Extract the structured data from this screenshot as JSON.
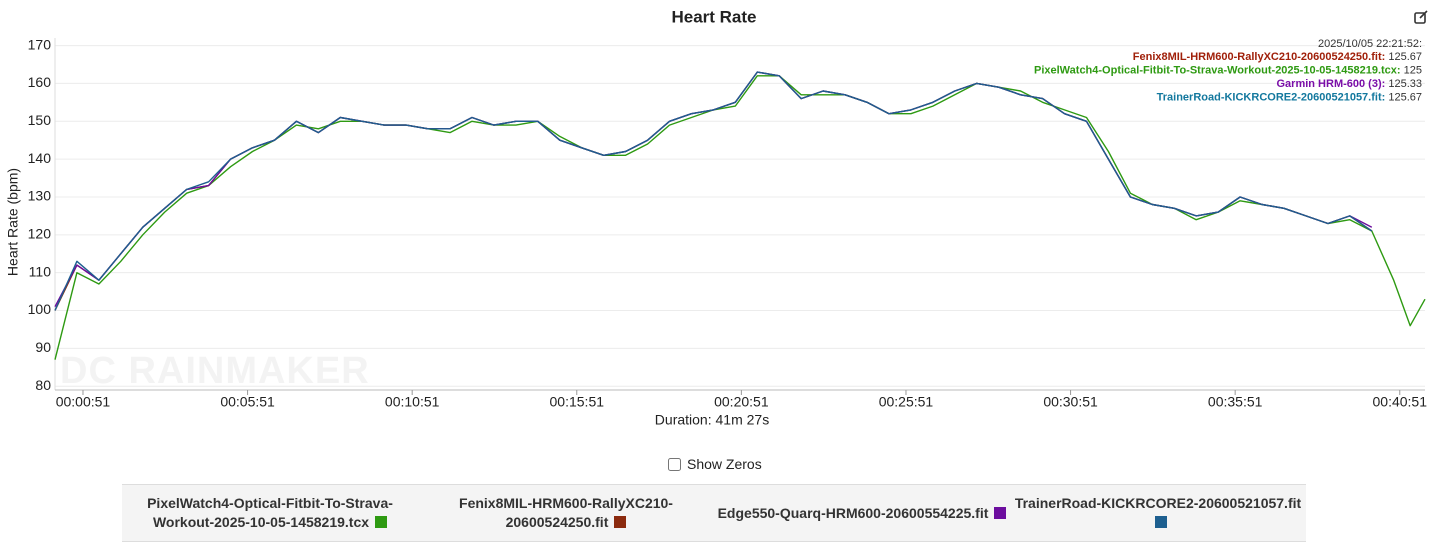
{
  "chart_data": {
    "type": "line",
    "title": "Heart Rate",
    "y_label": "Heart Rate (bpm)",
    "x_label": "Duration: 41m 27s",
    "watermark": "DC RAINMAKER",
    "show_zeros_label": "Show Zeros",
    "grid": true,
    "xlim": [
      0,
      2497
    ],
    "xticks": [
      {
        "value": 51,
        "label": "00:00:51"
      },
      {
        "value": 351,
        "label": "00:05:51"
      },
      {
        "value": 651,
        "label": "00:10:51"
      },
      {
        "value": 951,
        "label": "00:15:51"
      },
      {
        "value": 1251,
        "label": "00:20:51"
      },
      {
        "value": 1551,
        "label": "00:25:51"
      },
      {
        "value": 1851,
        "label": "00:30:51"
      },
      {
        "value": 2151,
        "label": "00:35:51"
      },
      {
        "value": 2451,
        "label": "00:40:51"
      }
    ],
    "ylim": [
      79,
      172
    ],
    "yticks": [
      80,
      90,
      100,
      110,
      120,
      130,
      140,
      150,
      160,
      170
    ],
    "x": [
      0,
      40,
      80,
      120,
      160,
      200,
      240,
      280,
      320,
      360,
      400,
      440,
      480,
      520,
      560,
      600,
      640,
      680,
      720,
      760,
      800,
      840,
      880,
      920,
      960,
      1000,
      1040,
      1080,
      1120,
      1160,
      1200,
      1240,
      1280,
      1320,
      1360,
      1400,
      1440,
      1480,
      1520,
      1560,
      1600,
      1640,
      1680,
      1720,
      1760,
      1800,
      1840,
      1880,
      1920,
      1960,
      2000,
      2040,
      2080,
      2120,
      2160,
      2200,
      2240,
      2280,
      2320,
      2360,
      2400,
      2440,
      2470,
      2497
    ],
    "series": [
      {
        "name": "PixelWatch4-Optical-Fitbit-To-Strava-Workout-2025-10-05-1458219.tcx",
        "color": "#2e9a12",
        "values": [
          87,
          110,
          107,
          113,
          120,
          126,
          131,
          133,
          138,
          142,
          145,
          149,
          148,
          150,
          150,
          149,
          149,
          148,
          147,
          150,
          149,
          149,
          150,
          146,
          143,
          141,
          141,
          144,
          149,
          151,
          153,
          154,
          162,
          162,
          157,
          157,
          157,
          155,
          152,
          152,
          154,
          157,
          160,
          159,
          158,
          155,
          153,
          151,
          142,
          131,
          128,
          127,
          124,
          126,
          129,
          128,
          127,
          125,
          123,
          124,
          121,
          108,
          96,
          103
        ]
      },
      {
        "name": "Fenix8MIL-HRM600-RallyXC210-20600524250.fit",
        "color": "#8b2a0e",
        "values": [
          100,
          112,
          108,
          115,
          122,
          127,
          132,
          133,
          140,
          143,
          145,
          150,
          147,
          151,
          150,
          149,
          149,
          148,
          148,
          151,
          149,
          150,
          150,
          145,
          143,
          141,
          142,
          145,
          150,
          152,
          153,
          155,
          163,
          162,
          156,
          158,
          157,
          155,
          152,
          153,
          155,
          158,
          160,
          159,
          157,
          156,
          152,
          150,
          140,
          130,
          128,
          127,
          125,
          126,
          130,
          128,
          127,
          125,
          123,
          125,
          121,
          null,
          null,
          null
        ]
      },
      {
        "name": "Edge550-Quarq-HRM600-20600554225.fit",
        "color": "#6c0d9e",
        "values": [
          101,
          112,
          108,
          115,
          122,
          127,
          132,
          133,
          140,
          143,
          145,
          150,
          147,
          151,
          150,
          149,
          149,
          148,
          148,
          151,
          149,
          150,
          150,
          145,
          143,
          141,
          142,
          145,
          150,
          152,
          153,
          155,
          163,
          162,
          156,
          158,
          157,
          155,
          152,
          153,
          155,
          158,
          160,
          159,
          157,
          156,
          152,
          150,
          140,
          130,
          128,
          127,
          125,
          126,
          130,
          128,
          127,
          125,
          123,
          125,
          122,
          null,
          null,
          null
        ]
      },
      {
        "name": "TrainerRoad-KICKRCORE2-20600521057.fit",
        "color": "#1d5f8f",
        "values": [
          100,
          113,
          108,
          115,
          122,
          127,
          132,
          134,
          140,
          143,
          145,
          150,
          147,
          151,
          150,
          149,
          149,
          148,
          148,
          151,
          149,
          150,
          150,
          145,
          143,
          141,
          142,
          145,
          150,
          152,
          153,
          155,
          163,
          162,
          156,
          158,
          157,
          155,
          152,
          153,
          155,
          158,
          160,
          159,
          157,
          156,
          152,
          150,
          140,
          130,
          128,
          127,
          125,
          126,
          130,
          128,
          127,
          125,
          123,
          125,
          121,
          null,
          null,
          null
        ]
      }
    ],
    "tooltip": {
      "time": "2025/10/05 22:21:52:",
      "entries": [
        {
          "name": "Fenix8MIL-HRM600-RallyXC210-20600524250.fit:",
          "value": 125.67,
          "color": "#a0200a"
        },
        {
          "name": "PixelWatch4-Optical-Fitbit-To-Strava-Workout-2025-10-05-1458219.tcx:",
          "value": 125,
          "color": "#2e9a12"
        },
        {
          "name": "Garmin HRM-600 (3):",
          "value": 125.33,
          "color": "#7a0ea8"
        },
        {
          "name": "TrainerRoad-KICKRCORE2-20600521057.fit:",
          "value": 125.67,
          "color": "#13789e"
        }
      ]
    }
  }
}
